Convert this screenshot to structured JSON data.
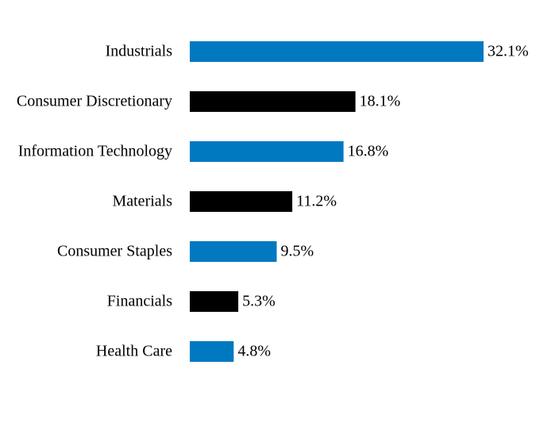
{
  "chart_data": {
    "type": "hbar",
    "categories": [
      "Industrials",
      "Consumer Discretionary",
      "Information Technology",
      "Materials",
      "Consumer Staples",
      "Financials",
      "Health Care"
    ],
    "values": [
      32.1,
      18.1,
      16.8,
      11.2,
      9.5,
      5.3,
      4.8
    ],
    "value_labels": [
      "32.1%",
      "18.1%",
      "16.8%",
      "11.2%",
      "9.5%",
      "5.3%",
      "4.8%"
    ],
    "colors": [
      "#0079c1",
      "#000000",
      "#0079c1",
      "#000000",
      "#0079c1",
      "#000000",
      "#0079c1"
    ]
  }
}
